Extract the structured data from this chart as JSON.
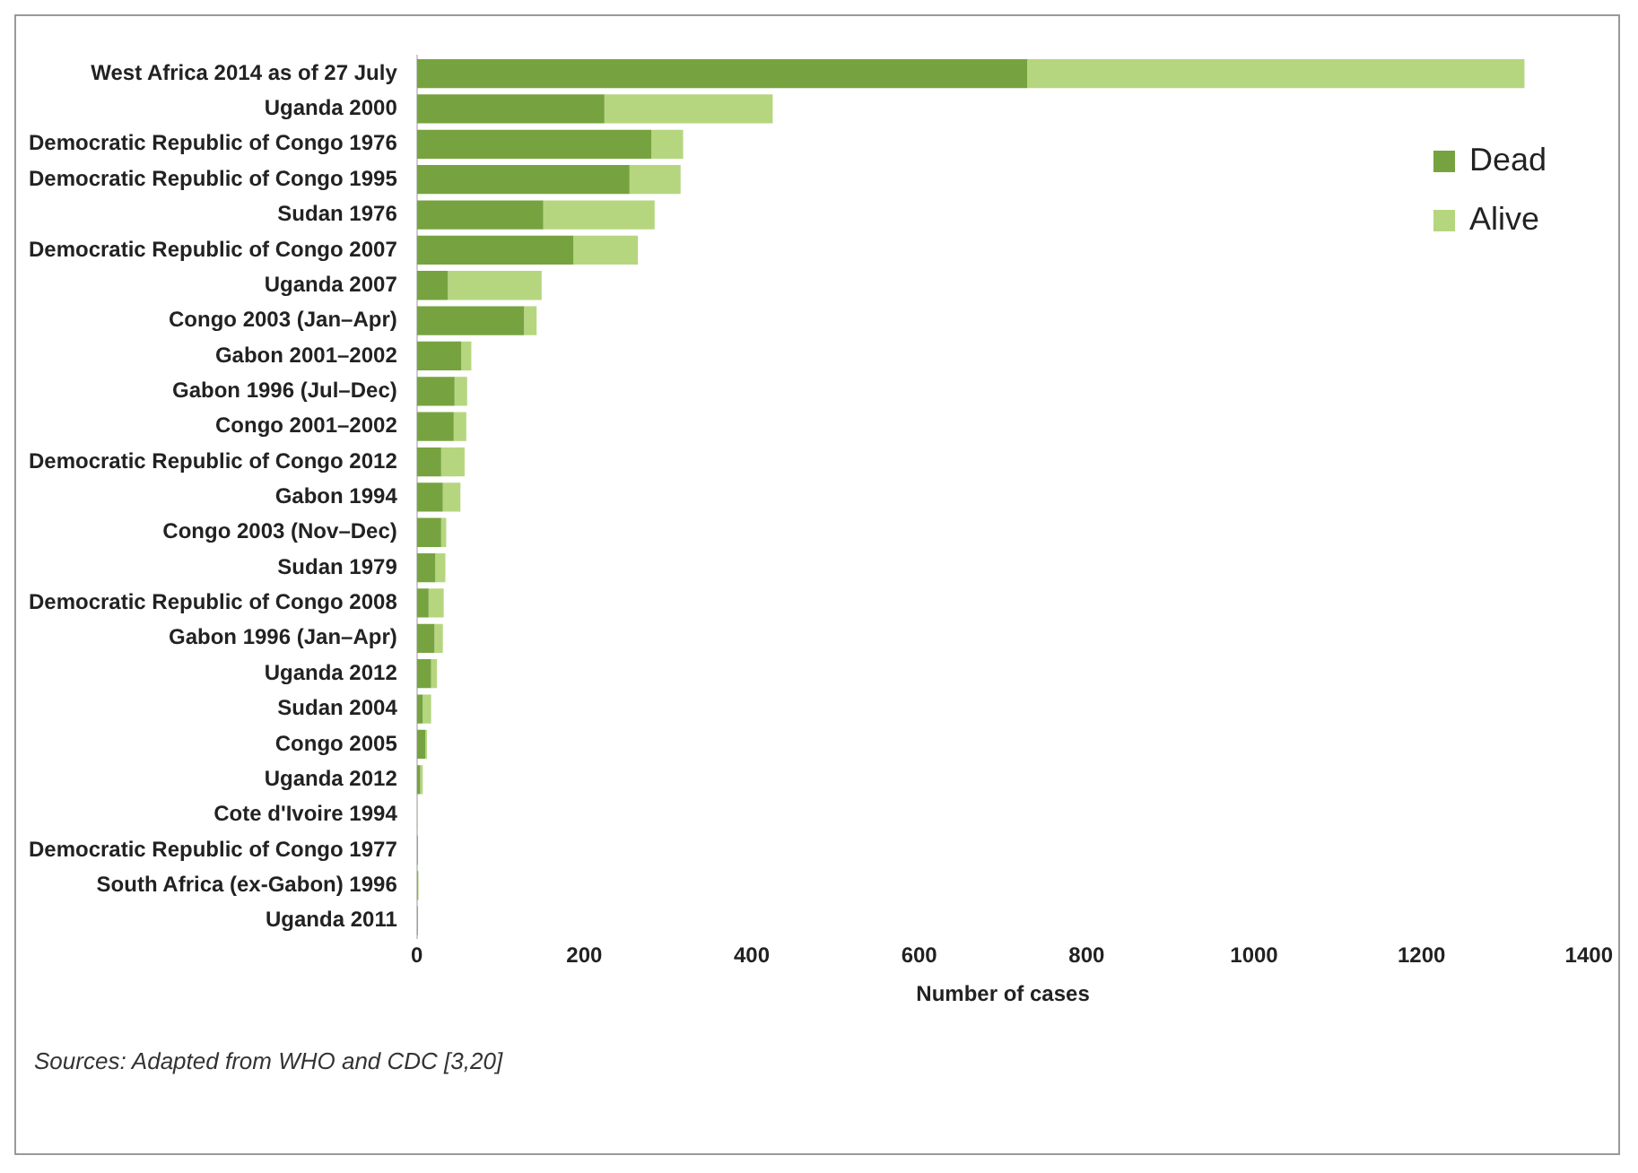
{
  "chart_data": {
    "type": "bar",
    "orientation": "horizontal",
    "stacked": true,
    "xlabel": "Number of cases",
    "categories": [
      "West Africa 2014 as of 27 July",
      "Uganda 2000",
      "Democratic Republic of Congo 1976",
      "Democratic Republic of Congo 1995",
      "Sudan 1976",
      "Democratic Republic of Congo 2007",
      "Uganda 2007",
      "Congo 2003 (Jan–Apr)",
      "Gabon 2001–2002",
      "Gabon 1996 (Jul–Dec)",
      "Congo 2001–2002",
      "Democratic Republic of Congo 2012",
      "Gabon 1994",
      "Congo 2003 (Nov–Dec)",
      "Sudan 1979",
      "Democratic Republic of Congo 2008",
      "Gabon 1996 (Jan–Apr)",
      "Uganda 2012",
      "Sudan 2004",
      "Congo 2005",
      "Uganda 2012",
      "Cote d'Ivoire 1994",
      "Democratic Republic of Congo 1977",
      "South Africa (ex-Gabon) 1996",
      "Uganda 2011"
    ],
    "series": [
      {
        "name": "Dead",
        "color": "#76a33f",
        "values": [
          729,
          224,
          280,
          254,
          151,
          187,
          37,
          128,
          53,
          45,
          44,
          29,
          31,
          29,
          22,
          14,
          21,
          17,
          7,
          10,
          4,
          0,
          1,
          1,
          1
        ]
      },
      {
        "name": "Alive",
        "color": "#b5d67f",
        "values": [
          594,
          201,
          38,
          61,
          133,
          77,
          112,
          15,
          12,
          15,
          15,
          28,
          21,
          6,
          12,
          18,
          10,
          7,
          10,
          2,
          3,
          1,
          0,
          1,
          0
        ]
      }
    ],
    "xlim": [
      0,
      1400
    ],
    "xticks": [
      0,
      200,
      400,
      600,
      800,
      1000,
      1200,
      1400
    ],
    "grid": false,
    "legend": "top right",
    "annotations": [
      "Sources: Adapted from WHO and CDC [3,20]"
    ]
  }
}
